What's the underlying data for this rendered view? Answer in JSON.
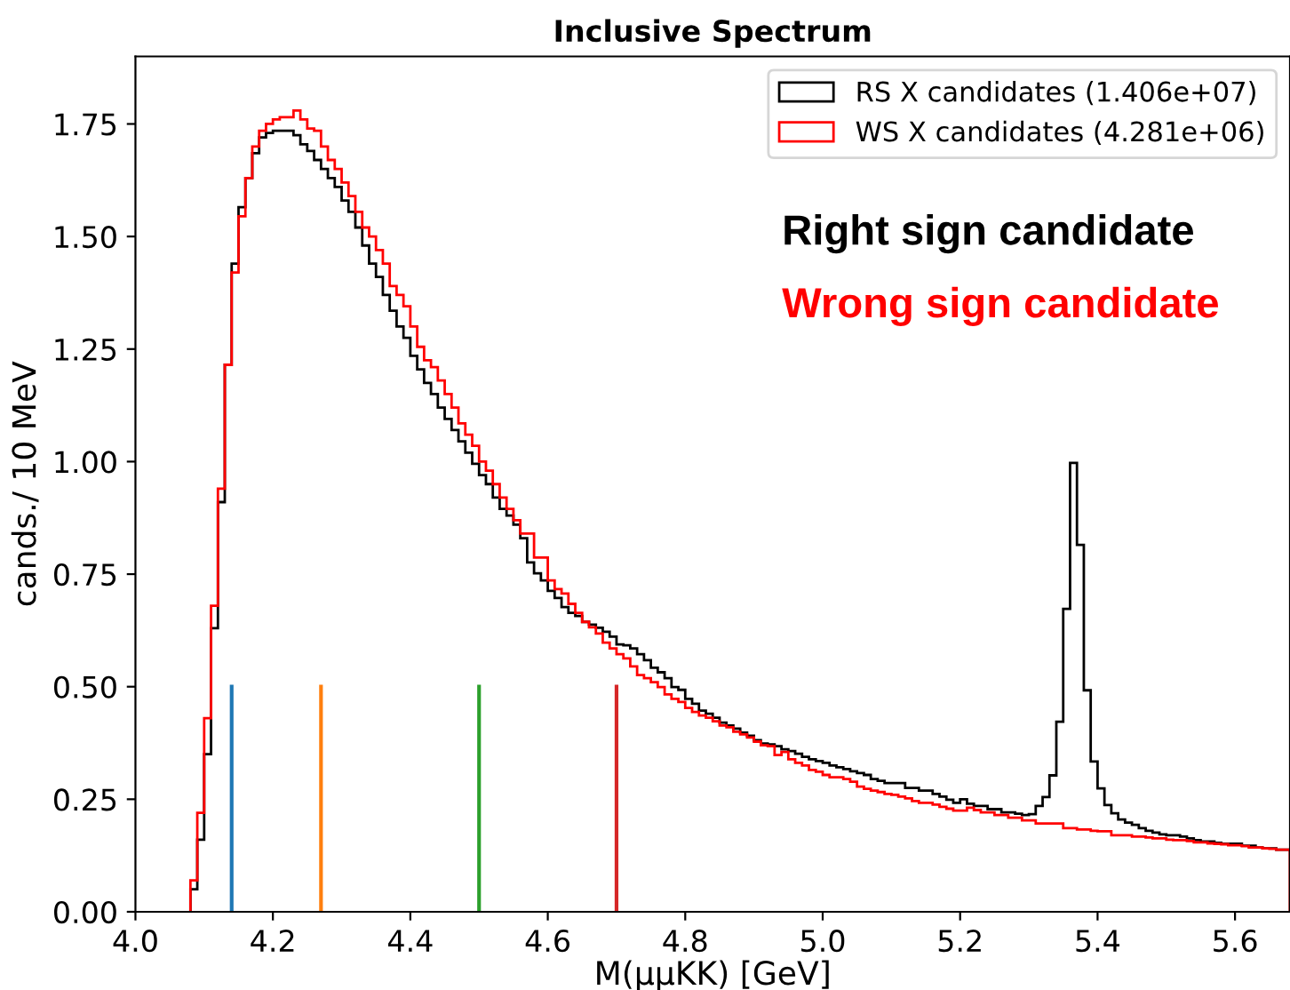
{
  "chart_data": {
    "type": "histogram",
    "title": "Inclusive Spectrum",
    "xlabel": "M(μμKK) [GeV]",
    "ylabel": "cands./ 10 MeV",
    "bins": [
      4.08,
      4.09,
      4.1,
      4.11,
      4.12,
      4.13,
      4.14,
      4.15,
      4.16,
      4.17,
      4.18,
      4.19,
      4.2,
      4.21,
      4.22,
      4.23,
      4.24,
      4.25,
      4.26,
      4.27,
      4.28,
      4.29,
      4.3,
      4.31,
      4.32,
      4.33,
      4.34,
      4.35,
      4.36,
      4.37,
      4.38,
      4.39,
      4.4,
      4.41,
      4.42,
      4.43,
      4.44,
      4.45,
      4.46,
      4.47,
      4.48,
      4.49,
      4.5,
      4.51,
      4.52,
      4.53,
      4.54,
      4.55,
      4.56,
      4.57,
      4.58,
      4.59,
      4.6,
      4.61,
      4.62,
      4.63,
      4.64,
      4.65,
      4.66,
      4.67,
      4.68,
      4.69,
      4.7,
      4.71,
      4.72,
      4.73,
      4.74,
      4.75,
      4.76,
      4.77,
      4.78,
      4.79,
      4.8,
      4.81,
      4.82,
      4.83,
      4.84,
      4.85,
      4.86,
      4.87,
      4.88,
      4.89,
      4.9,
      4.91,
      4.92,
      4.93,
      4.94,
      4.95,
      4.96,
      4.97,
      4.98,
      4.99,
      5.0,
      5.01,
      5.02,
      5.03,
      5.04,
      5.05,
      5.06,
      5.07,
      5.08,
      5.09,
      5.1,
      5.11,
      5.12,
      5.13,
      5.14,
      5.15,
      5.16,
      5.17,
      5.18,
      5.19,
      5.2,
      5.21,
      5.22,
      5.23,
      5.24,
      5.25,
      5.26,
      5.27,
      5.28,
      5.29,
      5.3,
      5.31,
      5.32,
      5.33,
      5.34,
      5.35,
      5.36,
      5.37,
      5.38,
      5.39,
      5.4,
      5.41,
      5.42,
      5.43,
      5.44,
      5.45,
      5.46,
      5.47,
      5.48,
      5.49,
      5.5,
      5.51,
      5.52,
      5.53,
      5.54,
      5.55,
      5.56,
      5.57,
      5.58,
      5.59,
      5.6,
      5.61,
      5.62,
      5.63,
      5.64,
      5.65,
      5.66,
      5.67,
      5.68
    ],
    "series": [
      {
        "name": "RS X candidates (1.406e+07)",
        "color": "#000000",
        "values": [
          0.05,
          0.16,
          0.35,
          0.63,
          0.91,
          1.215,
          1.44,
          1.565,
          1.63,
          1.685,
          1.72,
          1.73,
          1.735,
          1.735,
          1.735,
          1.725,
          1.705,
          1.69,
          1.67,
          1.65,
          1.63,
          1.61,
          1.58,
          1.555,
          1.52,
          1.48,
          1.44,
          1.41,
          1.37,
          1.335,
          1.3,
          1.275,
          1.235,
          1.205,
          1.175,
          1.15,
          1.12,
          1.095,
          1.07,
          1.045,
          1.02,
          0.995,
          0.97,
          0.95,
          0.92,
          0.895,
          0.88,
          0.86,
          0.83,
          0.776,
          0.752,
          0.736,
          0.713,
          0.697,
          0.677,
          0.664,
          0.657,
          0.644,
          0.638,
          0.631,
          0.622,
          0.611,
          0.594,
          0.592,
          0.585,
          0.572,
          0.559,
          0.542,
          0.532,
          0.519,
          0.499,
          0.493,
          0.473,
          0.462,
          0.447,
          0.44,
          0.431,
          0.42,
          0.414,
          0.407,
          0.398,
          0.391,
          0.381,
          0.374,
          0.372,
          0.368,
          0.361,
          0.357,
          0.351,
          0.344,
          0.339,
          0.335,
          0.331,
          0.325,
          0.321,
          0.317,
          0.312,
          0.308,
          0.304,
          0.295,
          0.291,
          0.286,
          0.286,
          0.286,
          0.275,
          0.275,
          0.269,
          0.269,
          0.262,
          0.256,
          0.249,
          0.242,
          0.25,
          0.24,
          0.235,
          0.235,
          0.228,
          0.228,
          0.221,
          0.221,
          0.218,
          0.215,
          0.217,
          0.235,
          0.255,
          0.303,
          0.422,
          0.673,
          0.997,
          0.815,
          0.492,
          0.334,
          0.274,
          0.237,
          0.219,
          0.205,
          0.198,
          0.193,
          0.186,
          0.18,
          0.176,
          0.172,
          0.17,
          0.17,
          0.167,
          0.163,
          0.159,
          0.156,
          0.156,
          0.153,
          0.151,
          0.151,
          0.151,
          0.147,
          0.147,
          0.143,
          0.141,
          0.141,
          0.138,
          0.138
        ]
      },
      {
        "name": "WS X candidates (4.281e+06)",
        "color": "#ff0000",
        "values": [
          0.07,
          0.22,
          0.43,
          0.68,
          0.94,
          1.215,
          1.42,
          1.545,
          1.63,
          1.7,
          1.735,
          1.75,
          1.76,
          1.765,
          1.765,
          1.78,
          1.76,
          1.74,
          1.735,
          1.7,
          1.67,
          1.65,
          1.62,
          1.59,
          1.555,
          1.52,
          1.5,
          1.47,
          1.44,
          1.39,
          1.37,
          1.345,
          1.3,
          1.255,
          1.225,
          1.21,
          1.18,
          1.15,
          1.12,
          1.085,
          1.06,
          1.035,
          1.0,
          0.98,
          0.95,
          0.92,
          0.895,
          0.87,
          0.84,
          0.84,
          0.787,
          0.787,
          0.736,
          0.717,
          0.707,
          0.684,
          0.664,
          0.644,
          0.632,
          0.618,
          0.598,
          0.585,
          0.572,
          0.563,
          0.545,
          0.526,
          0.519,
          0.51,
          0.499,
          0.483,
          0.473,
          0.466,
          0.453,
          0.444,
          0.436,
          0.431,
          0.423,
          0.414,
          0.41,
          0.4,
          0.394,
          0.387,
          0.378,
          0.37,
          0.368,
          0.348,
          0.355,
          0.339,
          0.331,
          0.325,
          0.315,
          0.311,
          0.304,
          0.299,
          0.299,
          0.295,
          0.289,
          0.278,
          0.273,
          0.269,
          0.266,
          0.262,
          0.26,
          0.256,
          0.252,
          0.246,
          0.242,
          0.242,
          0.238,
          0.233,
          0.229,
          0.225,
          0.225,
          0.231,
          0.226,
          0.221,
          0.221,
          0.215,
          0.215,
          0.209,
          0.209,
          0.203,
          0.203,
          0.196,
          0.196,
          0.196,
          0.196,
          0.186,
          0.186,
          0.183,
          0.183,
          0.18,
          0.179,
          0.179,
          0.17,
          0.17,
          0.17,
          0.167,
          0.167,
          0.165,
          0.163,
          0.163,
          0.16,
          0.159,
          0.159,
          0.157,
          0.154,
          0.154,
          0.152,
          0.151,
          0.15,
          0.148,
          0.148,
          0.146,
          0.143,
          0.143,
          0.141,
          0.14,
          0.138,
          0.138
        ]
      },
      {
        "type": "line",
        "color": "#1f77b4",
        "x": [
          4.14,
          4.14
        ],
        "values": [
          0,
          0.5
        ]
      },
      {
        "type": "line",
        "color": "#ff7f0e",
        "x": [
          4.27,
          4.27
        ],
        "values": [
          0,
          0.5
        ]
      },
      {
        "type": "line",
        "color": "#2ca02c",
        "x": [
          4.5,
          4.5
        ],
        "values": [
          0,
          0.5
        ]
      },
      {
        "type": "line",
        "color": "#d62728",
        "x": [
          4.7,
          4.7
        ],
        "values": [
          0,
          0.5
        ]
      }
    ],
    "annotations": [
      "Right sign candidate",
      "Wrong sign candidate"
    ],
    "xlim": [
      4.0,
      5.68
    ],
    "ylim": [
      0,
      1.9
    ],
    "xticks": [
      {
        "value": 4.0,
        "label": "4.0"
      },
      4.2,
      4.4,
      4.6,
      4.8,
      {
        "value": 5.0,
        "label": "5.0"
      },
      5.2,
      5.4,
      5.6
    ],
    "yticks": [
      {
        "value": 0,
        "label": "0.00"
      },
      0.25,
      {
        "value": 0.5,
        "label": "0.50"
      },
      0.75,
      {
        "value": 1,
        "label": "1.00"
      },
      1.25,
      {
        "value": 1.5,
        "label": "1.50"
      },
      1.75
    ],
    "legend": "top right",
    "grid": false
  }
}
